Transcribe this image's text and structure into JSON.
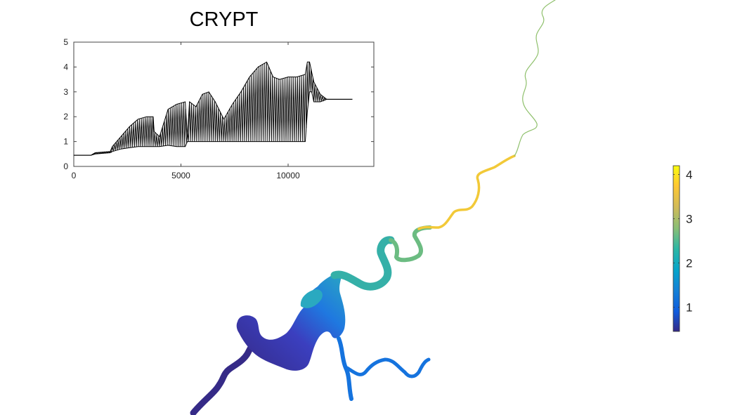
{
  "chart_data": [
    {
      "type": "line",
      "title": "CRYPT",
      "xlabel": "",
      "ylabel": "",
      "xlim": [
        0,
        14000
      ],
      "ylim": [
        0,
        5
      ],
      "x_ticks": [
        "0",
        "5000",
        "10000"
      ],
      "x_tick_values": [
        0,
        5000,
        10000
      ],
      "y_ticks": [
        "0",
        "1",
        "2",
        "3",
        "4",
        "5"
      ],
      "y_tick_values": [
        0,
        1,
        2,
        3,
        4,
        5
      ],
      "grid": false,
      "line_color": "#000000",
      "x": [
        0,
        800,
        1000,
        1700,
        1800,
        2200,
        2600,
        3000,
        3400,
        3700,
        3750,
        4000,
        4400,
        4800,
        5200,
        5300,
        5400,
        5700,
        6000,
        6300,
        6600,
        7000,
        7400,
        7800,
        8200,
        8600,
        9000,
        9300,
        9600,
        10000,
        10400,
        10800,
        10900,
        11000,
        11100,
        11200,
        11500,
        11800,
        13000
      ],
      "upper": [
        0.45,
        0.45,
        0.55,
        0.6,
        0.8,
        1.2,
        1.6,
        1.9,
        2.0,
        2.0,
        1.4,
        1.2,
        2.3,
        2.5,
        2.6,
        1.2,
        2.6,
        2.4,
        2.9,
        3.0,
        2.6,
        1.9,
        2.5,
        3.0,
        3.6,
        4.0,
        4.2,
        3.6,
        3.5,
        3.6,
        3.6,
        3.7,
        4.2,
        4.2,
        3.8,
        3.4,
        2.9,
        2.7,
        2.7
      ],
      "lower": [
        0.45,
        0.45,
        0.5,
        0.55,
        0.6,
        0.7,
        0.75,
        0.8,
        0.8,
        0.8,
        0.8,
        0.8,
        0.85,
        0.8,
        0.8,
        1.0,
        1.0,
        1.0,
        1.0,
        1.0,
        1.0,
        1.0,
        1.0,
        1.0,
        1.0,
        1.0,
        1.0,
        1.0,
        1.0,
        1.0,
        1.0,
        1.0,
        2.2,
        3.0,
        3.0,
        2.6,
        2.6,
        2.7,
        2.7
      ]
    },
    {
      "type": "heatmap",
      "colorbar": {
        "range": [
          0.45,
          4.2
        ],
        "ticks": [
          "1",
          "2",
          "3",
          "4"
        ],
        "tick_values": [
          1,
          2,
          3,
          4
        ],
        "colormap": [
          "#352a87",
          "#0f5cdd",
          "#1481d6",
          "#06a4ca",
          "#2eb7a4",
          "#87bf77",
          "#d1bb59",
          "#fec832",
          "#f9fb0e"
        ]
      }
    }
  ]
}
